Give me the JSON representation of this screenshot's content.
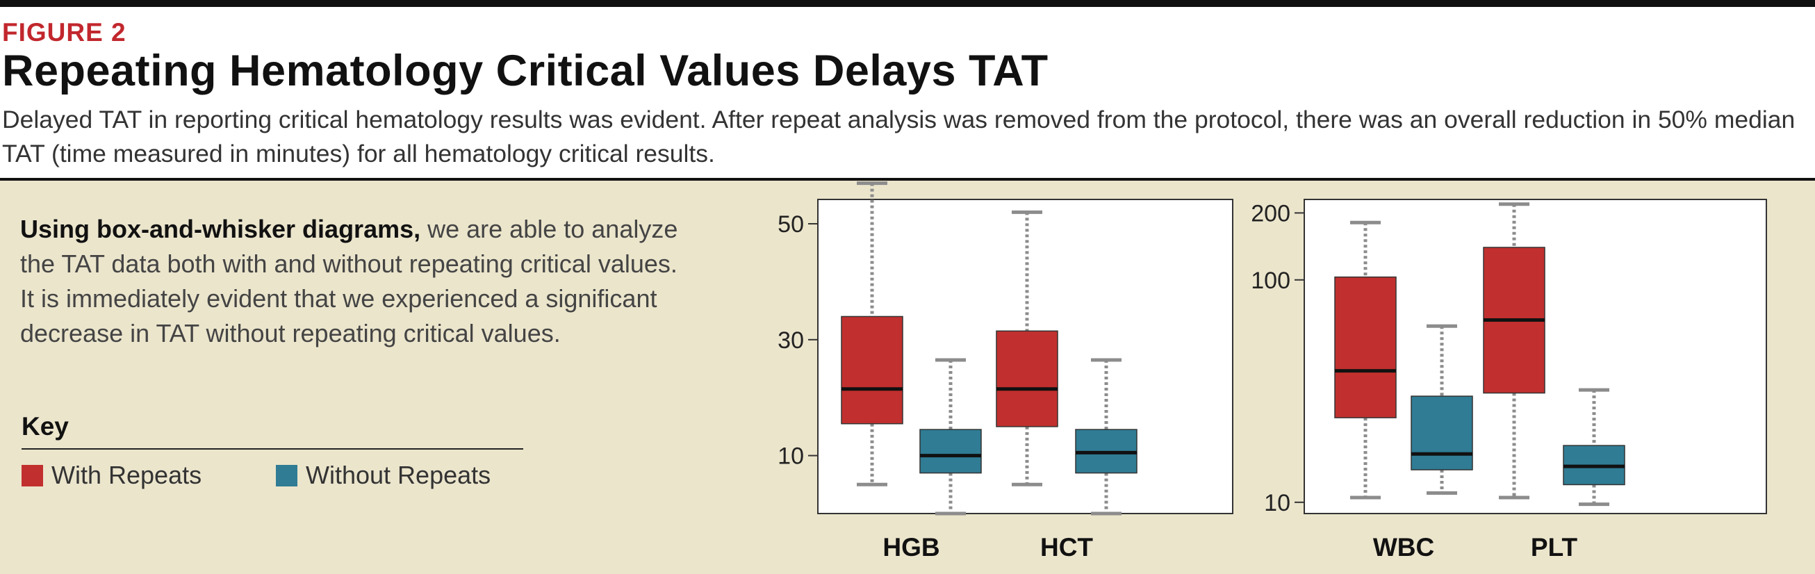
{
  "header": {
    "figure_label": "FIGURE 2",
    "title": "Repeating Hematology Critical Values Delays TAT",
    "description": "Delayed TAT in reporting critical hematology results was evident. After repeat analysis was removed from the protocol, there was an overall reduction in 50% median TAT (time measured in minutes) for all hematology critical results."
  },
  "intro": {
    "bold": "Using box-and-whisker diagrams,",
    "text": " we are able to analyze the TAT data both with and without repeating critical values. It is immediately evident that we experienced a significant decrease in TAT without repeating critical values."
  },
  "key": {
    "title": "Key",
    "items": [
      {
        "label": "With Repeats",
        "color": "#c1302e"
      },
      {
        "label": "Without Repeats",
        "color": "#2f7c94"
      }
    ]
  },
  "chart_data": [
    {
      "type": "boxplot",
      "scale": "linear",
      "yticks": [
        10,
        30,
        50
      ],
      "ylim": [
        0,
        54.2
      ],
      "grid": false,
      "categories": [
        "HGB",
        "HCT"
      ],
      "series": [
        {
          "name": "With Repeats",
          "color": "#c1302e",
          "boxes": [
            {
              "category": "HGB",
              "min": 5,
              "q1": 15.5,
              "median": 21.5,
              "q3": 34,
              "max": 57
            },
            {
              "category": "HCT",
              "min": 5,
              "q1": 15,
              "median": 21.5,
              "q3": 31.5,
              "max": 52
            }
          ]
        },
        {
          "name": "Without Repeats",
          "color": "#2f7c94",
          "boxes": [
            {
              "category": "HGB",
              "min": 0,
              "q1": 7,
              "median": 10,
              "q3": 14.5,
              "max": 26.5
            },
            {
              "category": "HCT",
              "min": 0,
              "q1": 7,
              "median": 10.5,
              "q3": 14.5,
              "max": 26.5
            }
          ]
        }
      ]
    },
    {
      "type": "boxplot",
      "scale": "log",
      "yticks": [
        10,
        100,
        200
      ],
      "ylim": [
        8.9,
        230
      ],
      "grid": false,
      "categories": [
        "WBC",
        "PLT"
      ],
      "series": [
        {
          "name": "With Repeats",
          "color": "#c1302e",
          "boxes": [
            {
              "category": "WBC",
              "min": 10.5,
              "q1": 24,
              "median": 39,
              "q3": 103,
              "max": 181
            },
            {
              "category": "PLT",
              "min": 10.5,
              "q1": 31,
              "median": 66,
              "q3": 140,
              "max": 219
            }
          ]
        },
        {
          "name": "Without Repeats",
          "color": "#2f7c94",
          "boxes": [
            {
              "category": "WBC",
              "min": 11,
              "q1": 14,
              "median": 16.5,
              "q3": 30,
              "max": 62
            },
            {
              "category": "PLT",
              "min": 9.8,
              "q1": 12,
              "median": 14.5,
              "q3": 18,
              "max": 32
            }
          ]
        }
      ]
    }
  ]
}
